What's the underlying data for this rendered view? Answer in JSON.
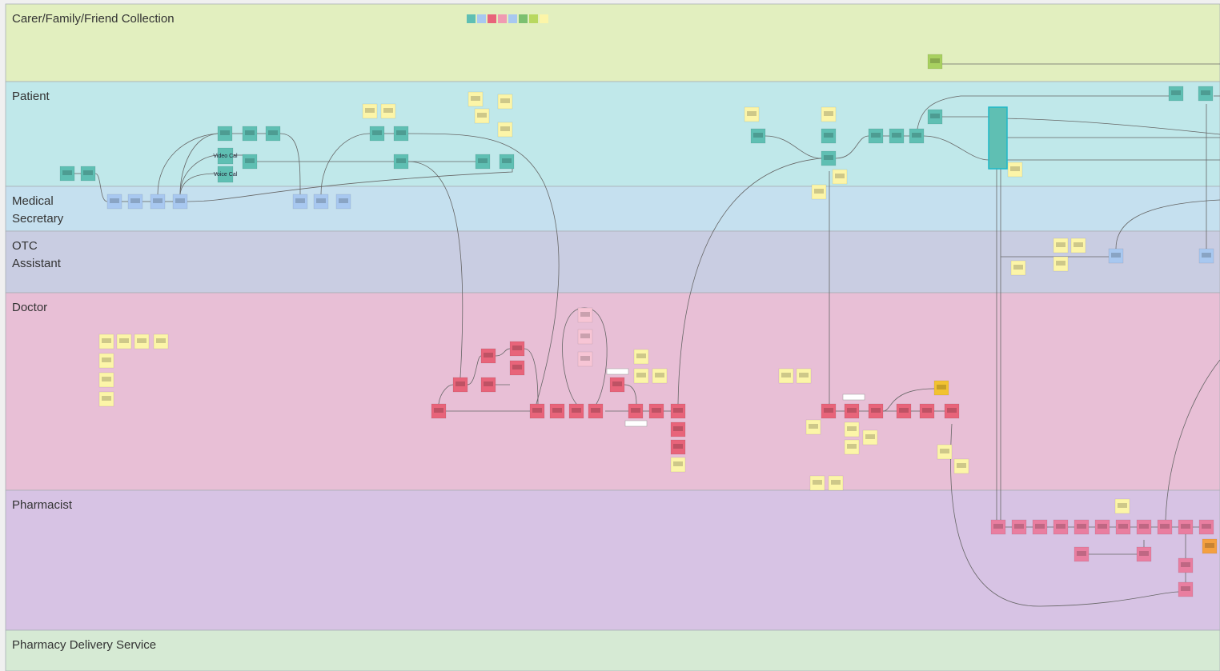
{
  "lanes": [
    {
      "lines": [
        "Carer/Family/Friend Collection"
      ]
    },
    {
      "lines": [
        "Patient"
      ]
    },
    {
      "lines": [
        "Medical",
        "Secretary"
      ]
    },
    {
      "lines": [
        "OTC",
        "Assistant"
      ]
    },
    {
      "lines": [
        "Doctor"
      ]
    },
    {
      "lines": [
        "Pharmacist"
      ]
    },
    {
      "lines": [
        "Pharmacy Delivery Service"
      ]
    }
  ],
  "notes": [
    "Video Cal",
    "Voice Cal"
  ]
}
